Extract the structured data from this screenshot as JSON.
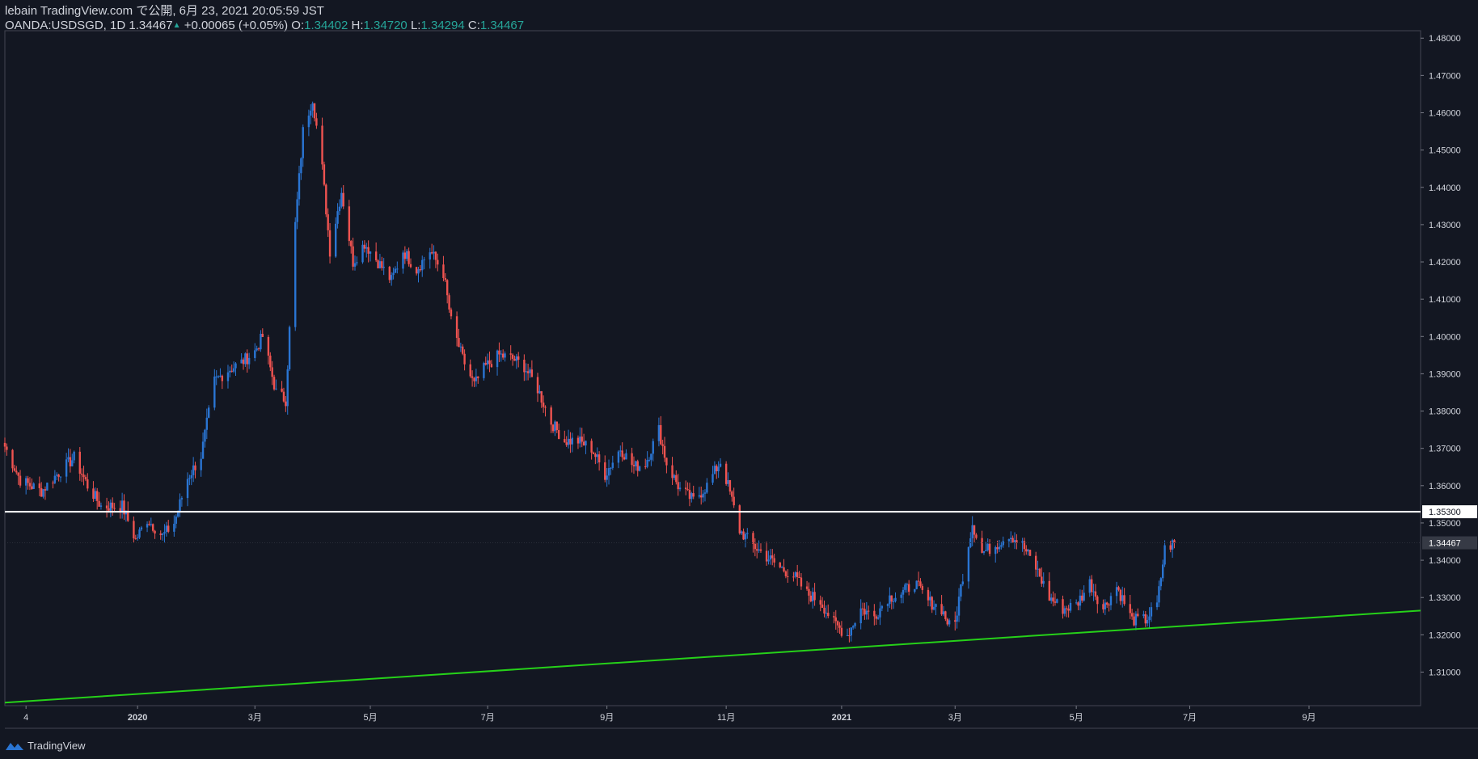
{
  "header": {
    "line1": "lebain TradingView.com で公開, 6月 23, 2021 20:05:59 JST",
    "symbol": "OANDA:USDSGD, 1D",
    "last": "1.34467",
    "change_arrow": "▲",
    "change": "+0.00065 (+0.05%)",
    "o_label": "O:",
    "o": "1.34402",
    "h_label": "H:",
    "h": "1.34720",
    "l_label": "L:",
    "l": "1.34294",
    "c_label": "C:",
    "c": "1.34467"
  },
  "footer": {
    "brand": "TradingView"
  },
  "colors": {
    "background": "#131722",
    "up": "#2a75d3",
    "down": "#ef5350",
    "horizontal_line": "#ffffff",
    "trendline": "#26d119",
    "text": "#d1d4dc"
  },
  "chart_data": {
    "type": "candlestick",
    "symbol": "OANDA:USDSGD",
    "interval": "1D",
    "y_axis": {
      "ylim": [
        1.301,
        1.482
      ],
      "ticks": [
        "1.31000",
        "1.32000",
        "1.33000",
        "1.34000",
        "1.35000",
        "1.36000",
        "1.37000",
        "1.38000",
        "1.39000",
        "1.40000",
        "1.41000",
        "1.42000",
        "1.43000",
        "1.44000",
        "1.45000",
        "1.46000",
        "1.47000",
        "1.48000"
      ]
    },
    "x_axis": {
      "start": "2019-10-24",
      "end": "2021-10-29",
      "ticks": [
        {
          "label": "4",
          "date": "2019-11-04"
        },
        {
          "label": "2020",
          "date": "2020-01-01"
        },
        {
          "label": "3月",
          "date": "2020-03-02"
        },
        {
          "label": "5月",
          "date": "2020-05-01"
        },
        {
          "label": "7月",
          "date": "2020-07-01"
        },
        {
          "label": "9月",
          "date": "2020-09-01"
        },
        {
          "label": "11月",
          "date": "2020-11-02"
        },
        {
          "label": "2021",
          "date": "2021-01-01"
        },
        {
          "label": "3月",
          "date": "2021-03-01"
        },
        {
          "label": "5月",
          "date": "2021-05-03"
        },
        {
          "label": "7月",
          "date": "2021-07-01"
        },
        {
          "label": "9月",
          "date": "2021-09-01"
        }
      ]
    },
    "horizontal_line": {
      "price": 1.353,
      "label": "1.35300"
    },
    "last_price": {
      "price": 1.34467,
      "label": "1.34467"
    },
    "trendline": {
      "from": {
        "date": "2019-10-24",
        "price": 1.3018
      },
      "to": {
        "date": "2021-10-29",
        "price": 1.3265
      }
    },
    "close_path": [
      [
        "2019-10-24",
        1.3705
      ],
      [
        "2019-11-01",
        1.3615
      ],
      [
        "2019-11-12",
        1.3585
      ],
      [
        "2019-11-20",
        1.363
      ],
      [
        "2019-11-29",
        1.3675
      ],
      [
        "2019-12-06",
        1.36
      ],
      [
        "2019-12-13",
        1.3545
      ],
      [
        "2019-12-24",
        1.3545
      ],
      [
        "2019-12-31",
        1.3455
      ],
      [
        "2020-01-06",
        1.351
      ],
      [
        "2020-01-14",
        1.3465
      ],
      [
        "2020-01-20",
        1.35
      ],
      [
        "2020-01-27",
        1.362
      ],
      [
        "2020-02-03",
        1.368
      ],
      [
        "2020-02-10",
        1.388
      ],
      [
        "2020-02-17",
        1.391
      ],
      [
        "2020-02-24",
        1.393
      ],
      [
        "2020-03-02",
        1.396
      ],
      [
        "2020-03-06",
        1.4
      ],
      [
        "2020-03-13",
        1.385
      ],
      [
        "2020-03-18",
        1.383
      ],
      [
        "2020-03-23",
        1.43
      ],
      [
        "2020-03-27",
        1.455
      ],
      [
        "2020-04-01",
        1.464
      ],
      [
        "2020-04-06",
        1.445
      ],
      [
        "2020-04-10",
        1.423
      ],
      [
        "2020-04-16",
        1.439
      ],
      [
        "2020-04-22",
        1.42
      ],
      [
        "2020-04-28",
        1.425
      ],
      [
        "2020-05-05",
        1.42
      ],
      [
        "2020-05-12",
        1.415
      ],
      [
        "2020-05-18",
        1.423
      ],
      [
        "2020-05-25",
        1.418
      ],
      [
        "2020-06-01",
        1.423
      ],
      [
        "2020-06-08",
        1.417
      ],
      [
        "2020-06-12",
        1.404
      ],
      [
        "2020-06-18",
        1.394
      ],
      [
        "2020-06-24",
        1.387
      ],
      [
        "2020-06-30",
        1.392
      ],
      [
        "2020-07-07",
        1.395
      ],
      [
        "2020-07-14",
        1.394
      ],
      [
        "2020-07-20",
        1.392
      ],
      [
        "2020-07-27",
        1.386
      ],
      [
        "2020-08-03",
        1.377
      ],
      [
        "2020-08-10",
        1.372
      ],
      [
        "2020-08-17",
        1.372
      ],
      [
        "2020-08-24",
        1.37
      ],
      [
        "2020-08-31",
        1.363
      ],
      [
        "2020-09-08",
        1.37
      ],
      [
        "2020-09-15",
        1.365
      ],
      [
        "2020-09-21",
        1.366
      ],
      [
        "2020-09-28",
        1.375
      ],
      [
        "2020-10-02",
        1.366
      ],
      [
        "2020-10-09",
        1.359
      ],
      [
        "2020-10-16",
        1.356
      ],
      [
        "2020-10-23",
        1.36
      ],
      [
        "2020-10-30",
        1.3665
      ],
      [
        "2020-11-03",
        1.36
      ],
      [
        "2020-11-09",
        1.348
      ],
      [
        "2020-11-16",
        1.344
      ],
      [
        "2020-11-23",
        1.341
      ],
      [
        "2020-11-30",
        1.338
      ],
      [
        "2020-12-07",
        1.336
      ],
      [
        "2020-12-14",
        1.331
      ],
      [
        "2020-12-21",
        1.329
      ],
      [
        "2020-12-28",
        1.323
      ],
      [
        "2021-01-04",
        1.32
      ],
      [
        "2021-01-11",
        1.327
      ],
      [
        "2021-01-18",
        1.325
      ],
      [
        "2021-01-25",
        1.33
      ],
      [
        "2021-02-01",
        1.331
      ],
      [
        "2021-02-08",
        1.334
      ],
      [
        "2021-02-15",
        1.329
      ],
      [
        "2021-02-22",
        1.327
      ],
      [
        "2021-02-28",
        1.32
      ],
      [
        "2021-03-05",
        1.336
      ],
      [
        "2021-03-10",
        1.35
      ],
      [
        "2021-03-15",
        1.342
      ],
      [
        "2021-03-22",
        1.344
      ],
      [
        "2021-03-29",
        1.347
      ],
      [
        "2021-04-05",
        1.344
      ],
      [
        "2021-04-12",
        1.338
      ],
      [
        "2021-04-19",
        1.33
      ],
      [
        "2021-04-26",
        1.327
      ],
      [
        "2021-05-03",
        1.328
      ],
      [
        "2021-05-10",
        1.334
      ],
      [
        "2021-05-17",
        1.327
      ],
      [
        "2021-05-24",
        1.333
      ],
      [
        "2021-06-01",
        1.324
      ],
      [
        "2021-06-08",
        1.324
      ],
      [
        "2021-06-14",
        1.328
      ],
      [
        "2021-06-18",
        1.343
      ],
      [
        "2021-06-23",
        1.34467
      ]
    ]
  }
}
